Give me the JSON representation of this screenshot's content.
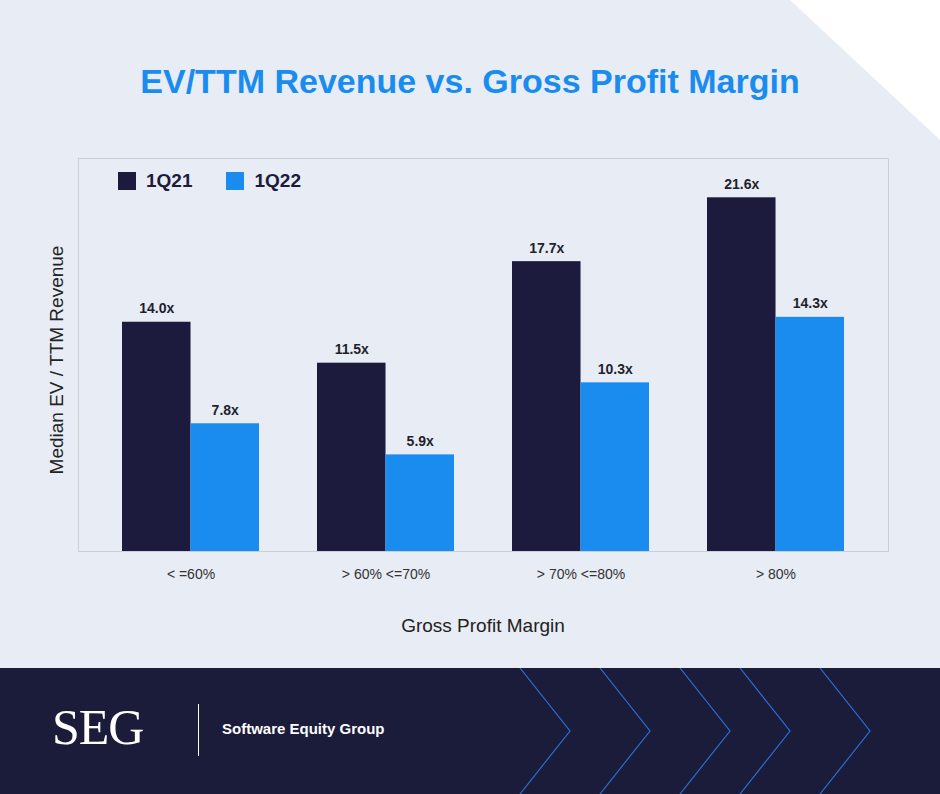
{
  "chart_data": {
    "type": "bar",
    "title": "EV/TTM Revenue vs. Gross Profit Margin",
    "x_label": "Gross Profit Margin",
    "y_label": "Median EV / TTM Revenue",
    "categories": [
      "< =60%",
      "> 60% <=70%",
      "> 70% <=80%",
      "> 80%"
    ],
    "series": [
      {
        "name": "1Q21",
        "color": "#1c1b3d",
        "values": [
          14.0,
          11.5,
          17.7,
          21.6
        ],
        "value_labels": [
          "14.0x",
          "11.5x",
          "17.7x",
          "21.6x"
        ]
      },
      {
        "name": "1Q22",
        "color": "#1a8cf0",
        "values": [
          7.8,
          5.9,
          10.3,
          14.3
        ],
        "value_labels": [
          "7.8x",
          "5.9x",
          "10.3x",
          "14.3x"
        ]
      }
    ],
    "ylim": [
      0,
      24
    ],
    "yticks": [],
    "grid": false,
    "legend": "top-left",
    "data_labels": true,
    "tick_labels": "x"
  },
  "footer": {
    "logo": "SEG",
    "brand": "Software Equity Group"
  }
}
